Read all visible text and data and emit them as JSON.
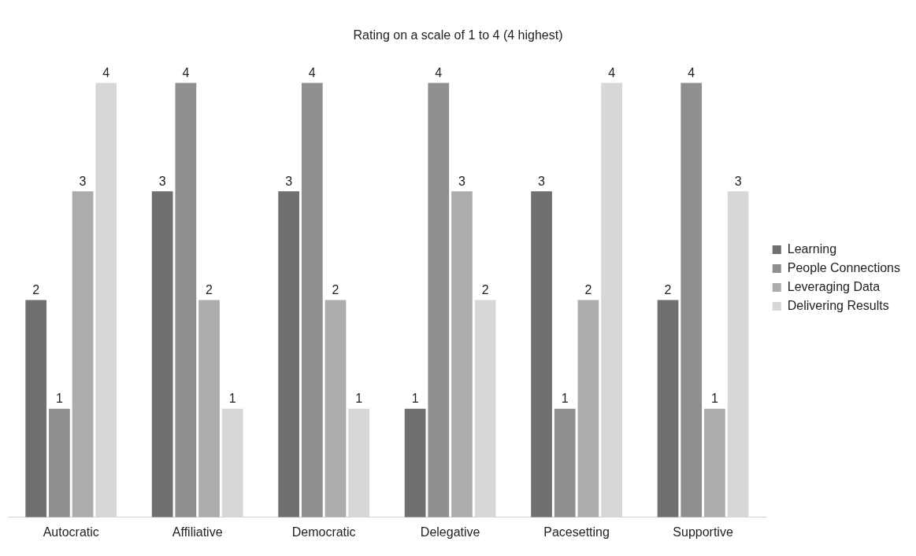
{
  "chart_data": {
    "type": "bar",
    "title": "Rating on a scale of 1 to 4 (4 highest)",
    "categories": [
      "Autocratic",
      "Affiliative",
      "Democratic",
      "Delegative",
      "Pacesetting",
      "Supportive"
    ],
    "series": [
      {
        "name": "Learning",
        "color": "#707072",
        "values": [
          2,
          3,
          3,
          1,
          3,
          2
        ]
      },
      {
        "name": "People Connections",
        "color": "#8f8f91",
        "values": [
          1,
          4,
          4,
          4,
          1,
          4
        ]
      },
      {
        "name": "Leveraging Data",
        "color": "#acacae",
        "values": [
          3,
          2,
          2,
          3,
          2,
          1
        ]
      },
      {
        "name": "Delivering Results",
        "color": "#d7d7d9",
        "values": [
          4,
          1,
          1,
          2,
          4,
          3
        ]
      }
    ],
    "data_labels": true,
    "grid": false,
    "legend": "right"
  }
}
